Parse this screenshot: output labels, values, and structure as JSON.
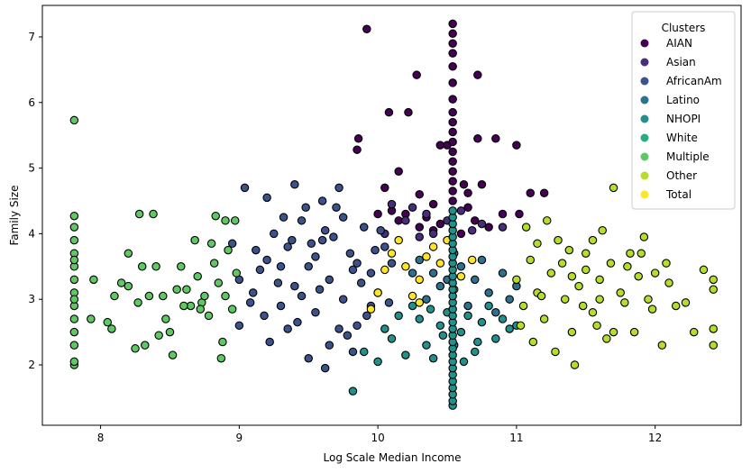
{
  "chart_data": {
    "type": "scatter",
    "xlabel": "Log Scale Median Income",
    "ylabel": "Family Size",
    "xlim": [
      7.58,
      12.62
    ],
    "ylim": [
      1.08,
      7.48
    ],
    "xticks": [
      8,
      9,
      10,
      11,
      12
    ],
    "yticks": [
      2,
      3,
      4,
      5,
      6,
      7
    ],
    "grid": false,
    "legend": {
      "title": "Clusters",
      "placement": "top-right"
    },
    "series": [
      {
        "name": "AIAN",
        "color": "#440154",
        "points": [
          [
            9.92,
            7.12
          ],
          [
            10.28,
            6.42
          ],
          [
            10.08,
            5.85
          ],
          [
            10.22,
            5.85
          ],
          [
            10.72,
            6.42
          ],
          [
            9.86,
            5.45
          ],
          [
            9.85,
            5.28
          ],
          [
            10.15,
            4.95
          ],
          [
            10.5,
            5.35
          ],
          [
            10.45,
            5.35
          ],
          [
            10.72,
            5.45
          ],
          [
            10.85,
            5.45
          ],
          [
            11.0,
            5.35
          ],
          [
            10.62,
            4.75
          ],
          [
            10.65,
            4.62
          ],
          [
            10.75,
            4.75
          ],
          [
            11.1,
            4.62
          ],
          [
            11.2,
            4.62
          ],
          [
            10.4,
            4.45
          ],
          [
            10.3,
            4.6
          ],
          [
            10.05,
            4.7
          ],
          [
            10.9,
            4.3
          ],
          [
            10.3,
            4.1
          ],
          [
            10.6,
            4.0
          ],
          [
            10.2,
            4.3
          ],
          [
            10.15,
            4.2
          ],
          [
            10.35,
            4.25
          ],
          [
            10.4,
            4.05
          ],
          [
            10.7,
            4.2
          ],
          [
            10.8,
            4.1
          ],
          [
            10.1,
            4.35
          ],
          [
            10.0,
            4.3
          ],
          [
            10.45,
            4.15
          ],
          [
            10.65,
            4.4
          ],
          [
            11.02,
            4.3
          ]
        ]
      },
      {
        "name": "Asian",
        "color": "#472d7b",
        "points": [
          [
            10.1,
            4.45
          ],
          [
            10.25,
            4.4
          ],
          [
            10.35,
            4.3
          ],
          [
            10.5,
            4.2
          ],
          [
            10.6,
            4.35
          ],
          [
            10.75,
            4.15
          ],
          [
            10.9,
            4.1
          ],
          [
            10.4,
            4.0
          ],
          [
            10.2,
            4.2
          ],
          [
            10.05,
            4.0
          ],
          [
            10.3,
            3.95
          ],
          [
            10.68,
            4.05
          ]
        ]
      },
      {
        "name": "AfricanAm",
        "color": "#3b528b",
        "points": [
          [
            9.0,
            3.3
          ],
          [
            9.1,
            3.1
          ],
          [
            9.2,
            3.6
          ],
          [
            9.3,
            2.9
          ],
          [
            9.35,
            3.8
          ],
          [
            9.4,
            3.2
          ],
          [
            9.45,
            4.2
          ],
          [
            9.5,
            3.5
          ],
          [
            9.55,
            2.8
          ],
          [
            9.6,
            3.9
          ],
          [
            9.65,
            3.3
          ],
          [
            9.7,
            4.4
          ],
          [
            9.75,
            3.0
          ],
          [
            9.8,
            3.7
          ],
          [
            9.85,
            2.6
          ],
          [
            9.9,
            4.1
          ],
          [
            9.95,
            3.4
          ],
          [
            10.0,
            3.1
          ],
          [
            10.05,
            3.8
          ],
          [
            9.15,
            3.45
          ],
          [
            9.25,
            4.0
          ],
          [
            9.35,
            2.55
          ],
          [
            9.45,
            3.05
          ],
          [
            9.55,
            3.65
          ],
          [
            9.65,
            2.3
          ],
          [
            9.75,
            4.25
          ],
          [
            9.85,
            3.55
          ],
          [
            9.2,
            4.55
          ],
          [
            9.4,
            4.75
          ],
          [
            9.6,
            4.5
          ],
          [
            9.72,
            4.7
          ],
          [
            9.04,
            4.7
          ],
          [
            9.95,
            2.9
          ],
          [
            9.0,
            2.6
          ],
          [
            9.3,
            3.5
          ],
          [
            9.5,
            2.1
          ],
          [
            9.62,
            1.95
          ],
          [
            9.82,
            2.2
          ],
          [
            8.95,
            3.85
          ],
          [
            9.08,
            2.95
          ],
          [
            9.18,
            2.75
          ],
          [
            9.28,
            3.25
          ],
          [
            9.38,
            3.9
          ],
          [
            9.48,
            4.4
          ],
          [
            9.58,
            3.15
          ],
          [
            9.68,
            3.95
          ],
          [
            9.78,
            2.45
          ],
          [
            9.88,
            3.25
          ],
          [
            9.98,
            3.75
          ],
          [
            10.08,
            2.95
          ],
          [
            10.1,
            3.55
          ],
          [
            9.12,
            3.75
          ],
          [
            9.22,
            2.35
          ],
          [
            9.32,
            4.25
          ],
          [
            9.42,
            2.65
          ],
          [
            9.52,
            3.85
          ],
          [
            9.62,
            4.05
          ],
          [
            9.72,
            2.55
          ],
          [
            9.82,
            3.45
          ],
          [
            9.92,
            2.75
          ],
          [
            10.02,
            4.05
          ]
        ]
      },
      {
        "name": "Latino",
        "color": "#2c728e",
        "points": [
          [
            10.3,
            3.6
          ],
          [
            10.4,
            3.4
          ],
          [
            10.45,
            3.2
          ],
          [
            10.6,
            3.5
          ],
          [
            10.7,
            3.3
          ],
          [
            10.8,
            3.1
          ],
          [
            10.9,
            3.4
          ],
          [
            10.35,
            3.0
          ],
          [
            10.55,
            3.7
          ],
          [
            10.65,
            2.9
          ],
          [
            10.75,
            3.6
          ],
          [
            10.85,
            2.8
          ],
          [
            11.0,
            3.2
          ],
          [
            10.5,
            3.3
          ],
          [
            10.25,
            3.4
          ],
          [
            10.95,
            3.0
          ]
        ]
      },
      {
        "name": "NHOPI",
        "color": "#21918c",
        "points": [
          [
            10.1,
            2.4
          ],
          [
            10.2,
            2.15
          ],
          [
            10.3,
            2.7
          ],
          [
            10.35,
            2.3
          ],
          [
            10.45,
            2.6
          ],
          [
            10.5,
            2.8
          ],
          [
            10.6,
            2.5
          ],
          [
            10.7,
            2.2
          ],
          [
            10.75,
            2.65
          ],
          [
            10.85,
            2.4
          ],
          [
            10.95,
            2.55
          ],
          [
            10.0,
            2.05
          ],
          [
            9.82,
            1.6
          ],
          [
            9.9,
            2.2
          ],
          [
            10.15,
            2.75
          ],
          [
            10.25,
            2.9
          ],
          [
            10.4,
            2.1
          ],
          [
            10.65,
            2.75
          ],
          [
            10.8,
            2.9
          ],
          [
            10.9,
            2.7
          ],
          [
            10.55,
            2.3
          ],
          [
            10.47,
            2.45
          ],
          [
            10.62,
            2.05
          ],
          [
            10.72,
            2.35
          ],
          [
            11.0,
            2.6
          ],
          [
            10.05,
            2.55
          ],
          [
            10.38,
            2.85
          ]
        ]
      },
      {
        "name": "White",
        "color": "#27ad81",
        "points": []
      },
      {
        "name": "Multiple",
        "color": "#5ec962",
        "points": [
          [
            7.81,
            5.73
          ],
          [
            7.81,
            4.27
          ],
          [
            7.81,
            4.1
          ],
          [
            7.81,
            3.9
          ],
          [
            7.81,
            3.7
          ],
          [
            7.81,
            3.5
          ],
          [
            7.81,
            3.3
          ],
          [
            7.81,
            3.1
          ],
          [
            7.81,
            2.9
          ],
          [
            7.81,
            2.7
          ],
          [
            7.81,
            2.5
          ],
          [
            7.81,
            2.3
          ],
          [
            7.81,
            2.0
          ],
          [
            7.81,
            2.05
          ],
          [
            7.81,
            3.0
          ],
          [
            7.81,
            3.6
          ],
          [
            7.93,
            2.7
          ],
          [
            7.95,
            3.3
          ],
          [
            8.05,
            2.65
          ],
          [
            8.08,
            2.55
          ],
          [
            8.1,
            3.05
          ],
          [
            8.2,
            3.2
          ],
          [
            8.25,
            2.25
          ],
          [
            8.27,
            2.95
          ],
          [
            8.28,
            4.3
          ],
          [
            8.32,
            2.3
          ],
          [
            8.35,
            3.05
          ],
          [
            8.38,
            4.3
          ],
          [
            8.4,
            3.5
          ],
          [
            8.42,
            2.45
          ],
          [
            8.45,
            3.05
          ],
          [
            8.5,
            2.5
          ],
          [
            8.55,
            3.15
          ],
          [
            8.52,
            2.15
          ],
          [
            8.58,
            3.5
          ],
          [
            8.62,
            3.15
          ],
          [
            8.65,
            2.9
          ],
          [
            8.68,
            3.9
          ],
          [
            8.7,
            3.35
          ],
          [
            8.73,
            2.95
          ],
          [
            8.75,
            3.05
          ],
          [
            8.78,
            2.75
          ],
          [
            8.8,
            3.85
          ],
          [
            8.82,
            3.55
          ],
          [
            8.83,
            4.27
          ],
          [
            8.85,
            3.25
          ],
          [
            8.87,
            2.1
          ],
          [
            8.88,
            2.35
          ],
          [
            8.9,
            3.05
          ],
          [
            8.92,
            3.75
          ],
          [
            8.95,
            2.85
          ],
          [
            8.97,
            4.2
          ],
          [
            8.98,
            3.4
          ],
          [
            8.72,
            2.85
          ],
          [
            8.6,
            2.9
          ],
          [
            8.47,
            2.7
          ],
          [
            8.3,
            3.5
          ],
          [
            8.2,
            3.7
          ],
          [
            8.15,
            3.25
          ],
          [
            8.9,
            4.2
          ]
        ]
      },
      {
        "name": "Other",
        "color": "#b5de2b",
        "points": [
          [
            11.0,
            3.3
          ],
          [
            11.05,
            2.9
          ],
          [
            11.1,
            3.6
          ],
          [
            11.15,
            3.1
          ],
          [
            11.2,
            2.7
          ],
          [
            11.25,
            3.4
          ],
          [
            11.3,
            3.9
          ],
          [
            11.35,
            3.0
          ],
          [
            11.4,
            2.5
          ],
          [
            11.45,
            3.2
          ],
          [
            11.5,
            3.7
          ],
          [
            11.55,
            2.8
          ],
          [
            11.6,
            3.3
          ],
          [
            11.65,
            2.4
          ],
          [
            11.7,
            4.7
          ],
          [
            11.75,
            3.1
          ],
          [
            11.8,
            3.5
          ],
          [
            11.85,
            2.5
          ],
          [
            11.9,
            3.7
          ],
          [
            11.95,
            3.0
          ],
          [
            12.0,
            3.4
          ],
          [
            12.05,
            2.3
          ],
          [
            12.1,
            3.25
          ],
          [
            12.15,
            2.9
          ],
          [
            12.22,
            2.95
          ],
          [
            12.28,
            2.5
          ],
          [
            12.35,
            3.45
          ],
          [
            12.42,
            3.3
          ],
          [
            12.42,
            3.15
          ],
          [
            12.42,
            2.55
          ],
          [
            12.42,
            2.3
          ],
          [
            11.42,
            2.0
          ],
          [
            11.7,
            2.5
          ],
          [
            11.55,
            3.9
          ],
          [
            11.62,
            4.05
          ],
          [
            11.82,
            3.7
          ],
          [
            11.22,
            4.2
          ],
          [
            11.07,
            4.1
          ],
          [
            11.15,
            3.85
          ],
          [
            11.33,
            3.55
          ],
          [
            11.48,
            2.9
          ],
          [
            11.58,
            2.6
          ],
          [
            11.68,
            3.55
          ],
          [
            11.78,
            2.95
          ],
          [
            11.88,
            3.35
          ],
          [
            11.98,
            2.85
          ],
          [
            11.03,
            2.6
          ],
          [
            11.12,
            2.35
          ],
          [
            11.28,
            2.2
          ],
          [
            11.38,
            3.75
          ],
          [
            11.5,
            3.45
          ],
          [
            11.18,
            3.05
          ],
          [
            11.4,
            3.35
          ],
          [
            11.6,
            3.0
          ],
          [
            12.08,
            3.55
          ],
          [
            11.92,
            3.95
          ]
        ]
      },
      {
        "name": "Total",
        "color": "#fde725",
        "points": [
          [
            10.1,
            3.7
          ],
          [
            10.2,
            3.5
          ],
          [
            10.3,
            3.3
          ],
          [
            10.45,
            3.55
          ],
          [
            10.6,
            3.35
          ],
          [
            10.0,
            3.1
          ],
          [
            10.25,
            3.05
          ],
          [
            10.4,
            3.8
          ],
          [
            10.55,
            3.15
          ],
          [
            10.68,
            3.6
          ],
          [
            10.05,
            3.45
          ],
          [
            10.35,
            3.65
          ],
          [
            10.15,
            3.9
          ],
          [
            10.5,
            3.9
          ],
          [
            9.95,
            2.85
          ],
          [
            10.3,
            2.95
          ]
        ]
      }
    ],
    "vertical_cluster": {
      "color": "#21918c",
      "x": 10.54,
      "y_values": [
        1.38,
        1.45,
        1.55,
        1.65,
        1.75,
        1.85,
        1.95,
        2.05,
        2.15,
        2.25,
        2.35,
        2.45,
        2.55,
        2.65,
        2.75,
        2.85,
        2.95,
        3.05,
        3.15,
        3.25,
        3.35,
        3.45,
        3.55,
        3.65,
        3.75,
        3.85,
        3.95,
        4.05,
        4.15,
        4.25,
        4.35
      ],
      "top_color": "#440154",
      "top_y_values": [
        4.5,
        4.65,
        4.8,
        4.95,
        5.1,
        5.25,
        5.4,
        5.55,
        5.7,
        5.85,
        6.05,
        6.3,
        6.55,
        6.75,
        6.9,
        7.05,
        7.2
      ]
    }
  }
}
